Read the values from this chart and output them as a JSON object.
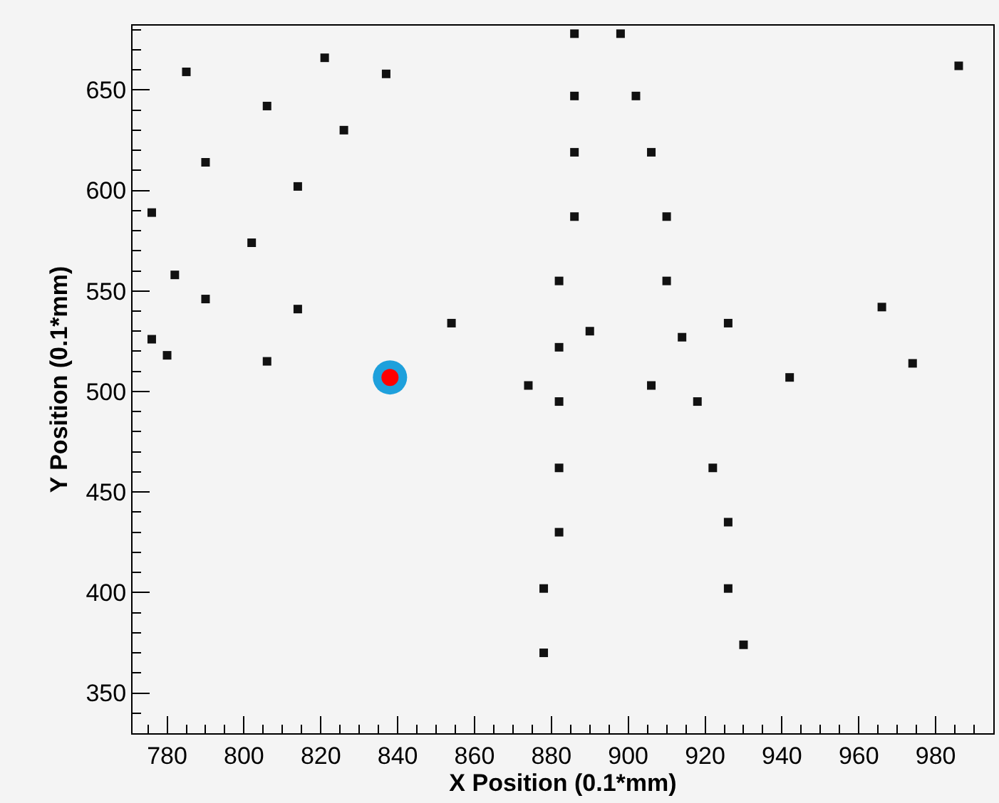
{
  "chart_data": {
    "type": "scatter",
    "xlabel": "X Position (0.1*mm)",
    "ylabel": "Y Position (0.1*mm)",
    "xlim": [
      771,
      995
    ],
    "ylim": [
      330,
      682
    ],
    "xticks": [
      780,
      800,
      820,
      840,
      860,
      880,
      900,
      920,
      940,
      960,
      980
    ],
    "yticks": [
      350,
      400,
      450,
      500,
      550,
      600,
      650
    ],
    "grid": false,
    "marker": "square",
    "series": [
      {
        "color": "#111111",
        "x": [
          785,
          821,
          837,
          806,
          826,
          790,
          814,
          776,
          802,
          782,
          790,
          814,
          854,
          776,
          780,
          806,
          882,
          882,
          886,
          898,
          986,
          886,
          902,
          886,
          906,
          886,
          910,
          910,
          966,
          926,
          890,
          914,
          974,
          942,
          874,
          882,
          906,
          918,
          882,
          922,
          882,
          926,
          878,
          926,
          878,
          930
        ],
        "values": [
          659,
          666,
          658,
          642,
          630,
          614,
          602,
          589,
          574,
          558,
          546,
          541,
          534,
          526,
          518,
          515,
          555,
          522,
          678,
          678,
          662,
          647,
          647,
          619,
          619,
          587,
          587,
          555,
          542,
          534,
          530,
          527,
          514,
          507,
          503,
          495,
          503,
          495,
          462,
          462,
          430,
          435,
          402,
          402,
          370,
          374
        ]
      },
      {
        "type": "scatter",
        "marker": "circle",
        "color": "#1ea0dc",
        "x": [
          838
        ],
        "values": [
          507
        ]
      },
      {
        "type": "scatter",
        "marker": "circle",
        "color": "#ff0000",
        "x": [
          838
        ],
        "values": [
          507
        ]
      }
    ]
  }
}
